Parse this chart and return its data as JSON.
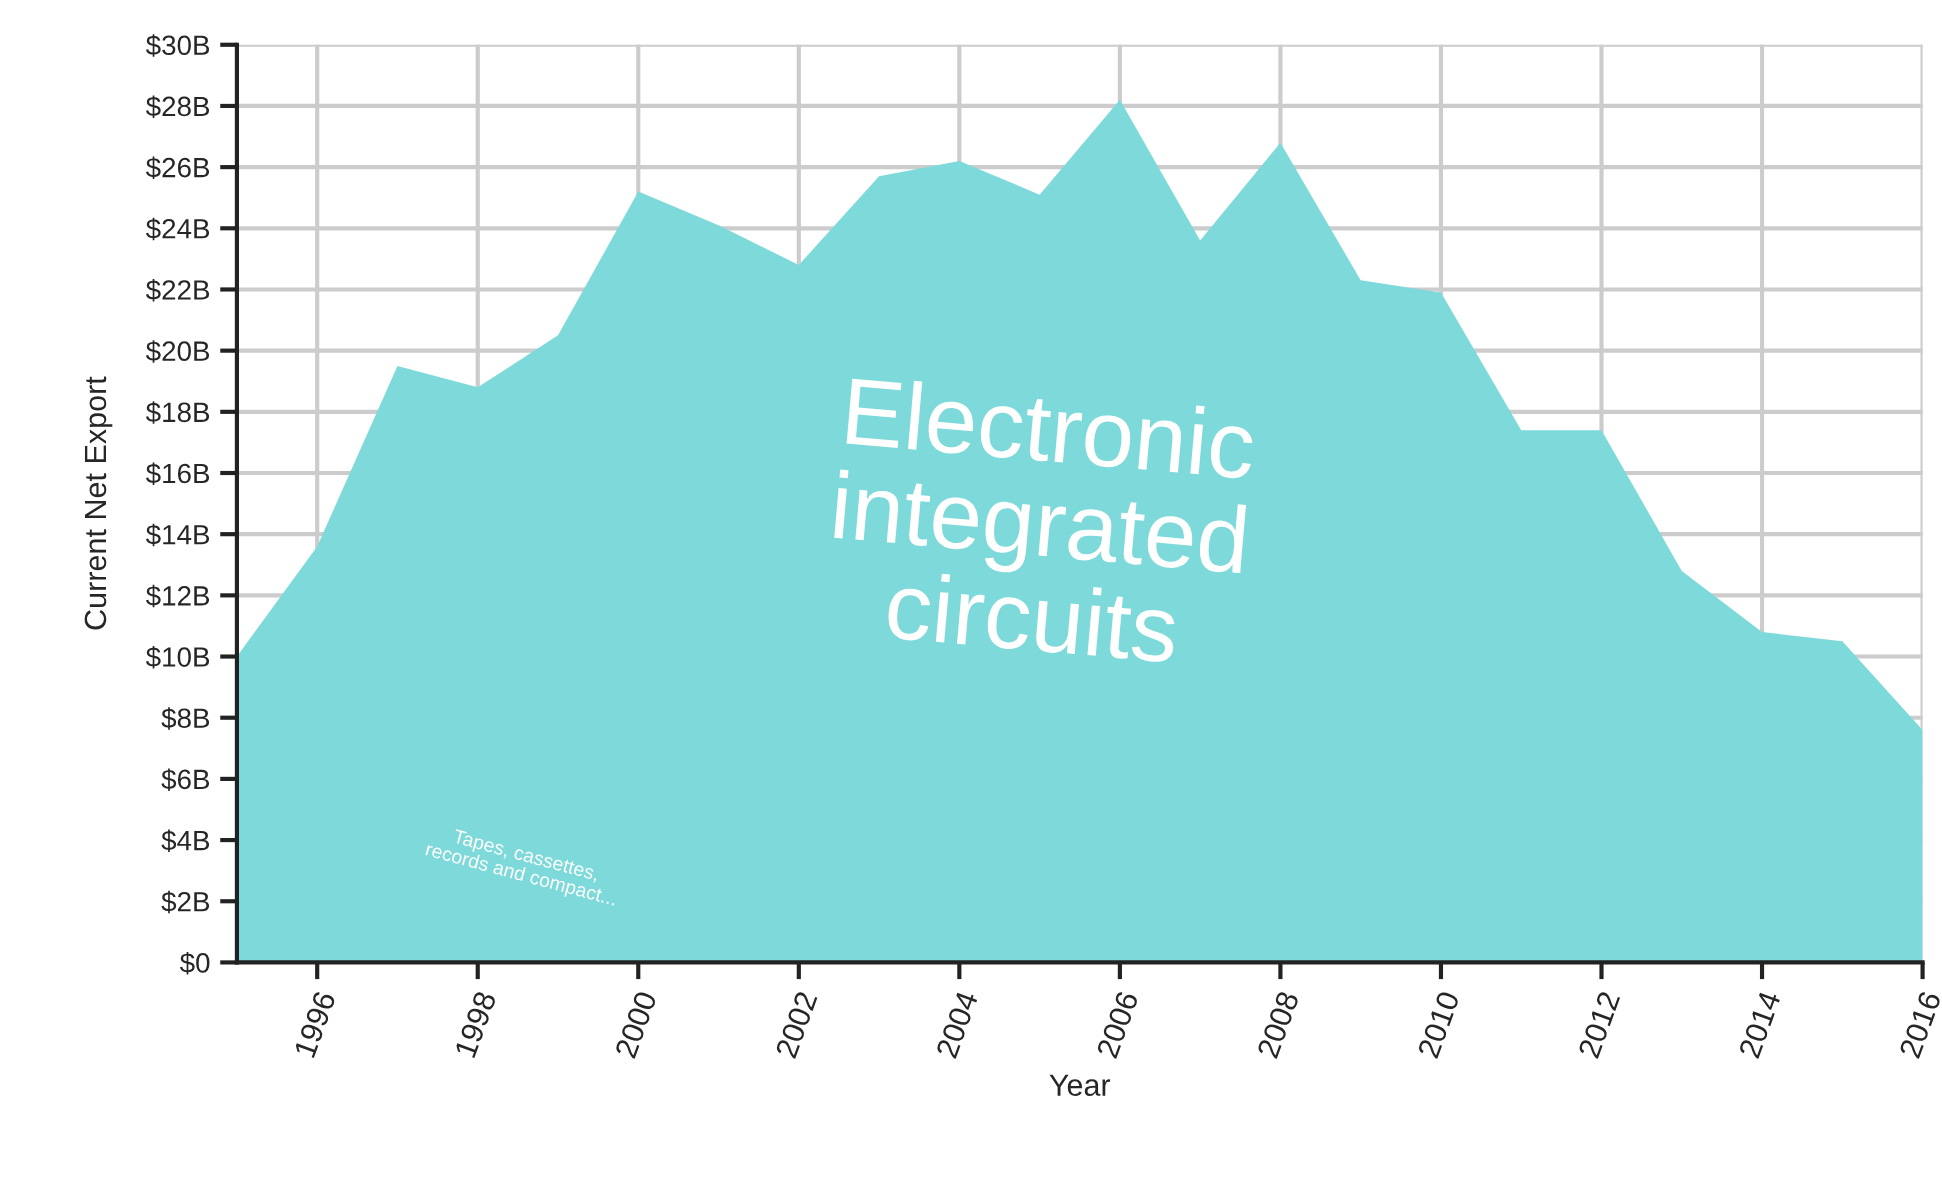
{
  "chart_data": {
    "type": "area",
    "xlabel": "Year",
    "ylabel": "Current Net Export",
    "x": [
      1995,
      1996,
      1997,
      1998,
      1999,
      2000,
      2001,
      2002,
      2003,
      2004,
      2005,
      2006,
      2007,
      2008,
      2009,
      2010,
      2011,
      2012,
      2013,
      2014,
      2015,
      2016
    ],
    "series": [
      {
        "color": "#7edada",
        "values": [
          10.0,
          13.6,
          19.5,
          18.8,
          20.5,
          25.2,
          24.1,
          22.8,
          25.7,
          26.2,
          25.1,
          28.2,
          23.6,
          26.8,
          22.3,
          21.9,
          17.4,
          17.4,
          12.8,
          10.8,
          10.5,
          7.6
        ]
      }
    ],
    "xlim": [
      1995,
      2016
    ],
    "xticks": [
      1996,
      1998,
      2000,
      2002,
      2004,
      2006,
      2008,
      2010,
      2012,
      2014,
      2016
    ],
    "ylim": [
      0,
      30
    ],
    "yticks": [
      {
        "value": 0,
        "label": "$0"
      },
      {
        "value": 2,
        "label": "$2B"
      },
      {
        "value": 4,
        "label": "$4B"
      },
      {
        "value": 6,
        "label": "$6B"
      },
      {
        "value": 8,
        "label": "$8B"
      },
      {
        "value": 10,
        "label": "$10B"
      },
      {
        "value": 12,
        "label": "$12B"
      },
      {
        "value": 14,
        "label": "$14B"
      },
      {
        "value": 16,
        "label": "$16B"
      },
      {
        "value": 18,
        "label": "$18B"
      },
      {
        "value": 20,
        "label": "$20B"
      },
      {
        "value": 22,
        "label": "$22B"
      },
      {
        "value": 24,
        "label": "$24B"
      },
      {
        "value": 26,
        "label": "$26B"
      },
      {
        "value": 28,
        "label": "$28B"
      },
      {
        "value": 30,
        "label": "$30B"
      }
    ],
    "grid": true,
    "annotations": [
      "Electronic\nintegrated\ncircuits",
      "Tapes, cassettes,\nrecords and compact..."
    ]
  }
}
